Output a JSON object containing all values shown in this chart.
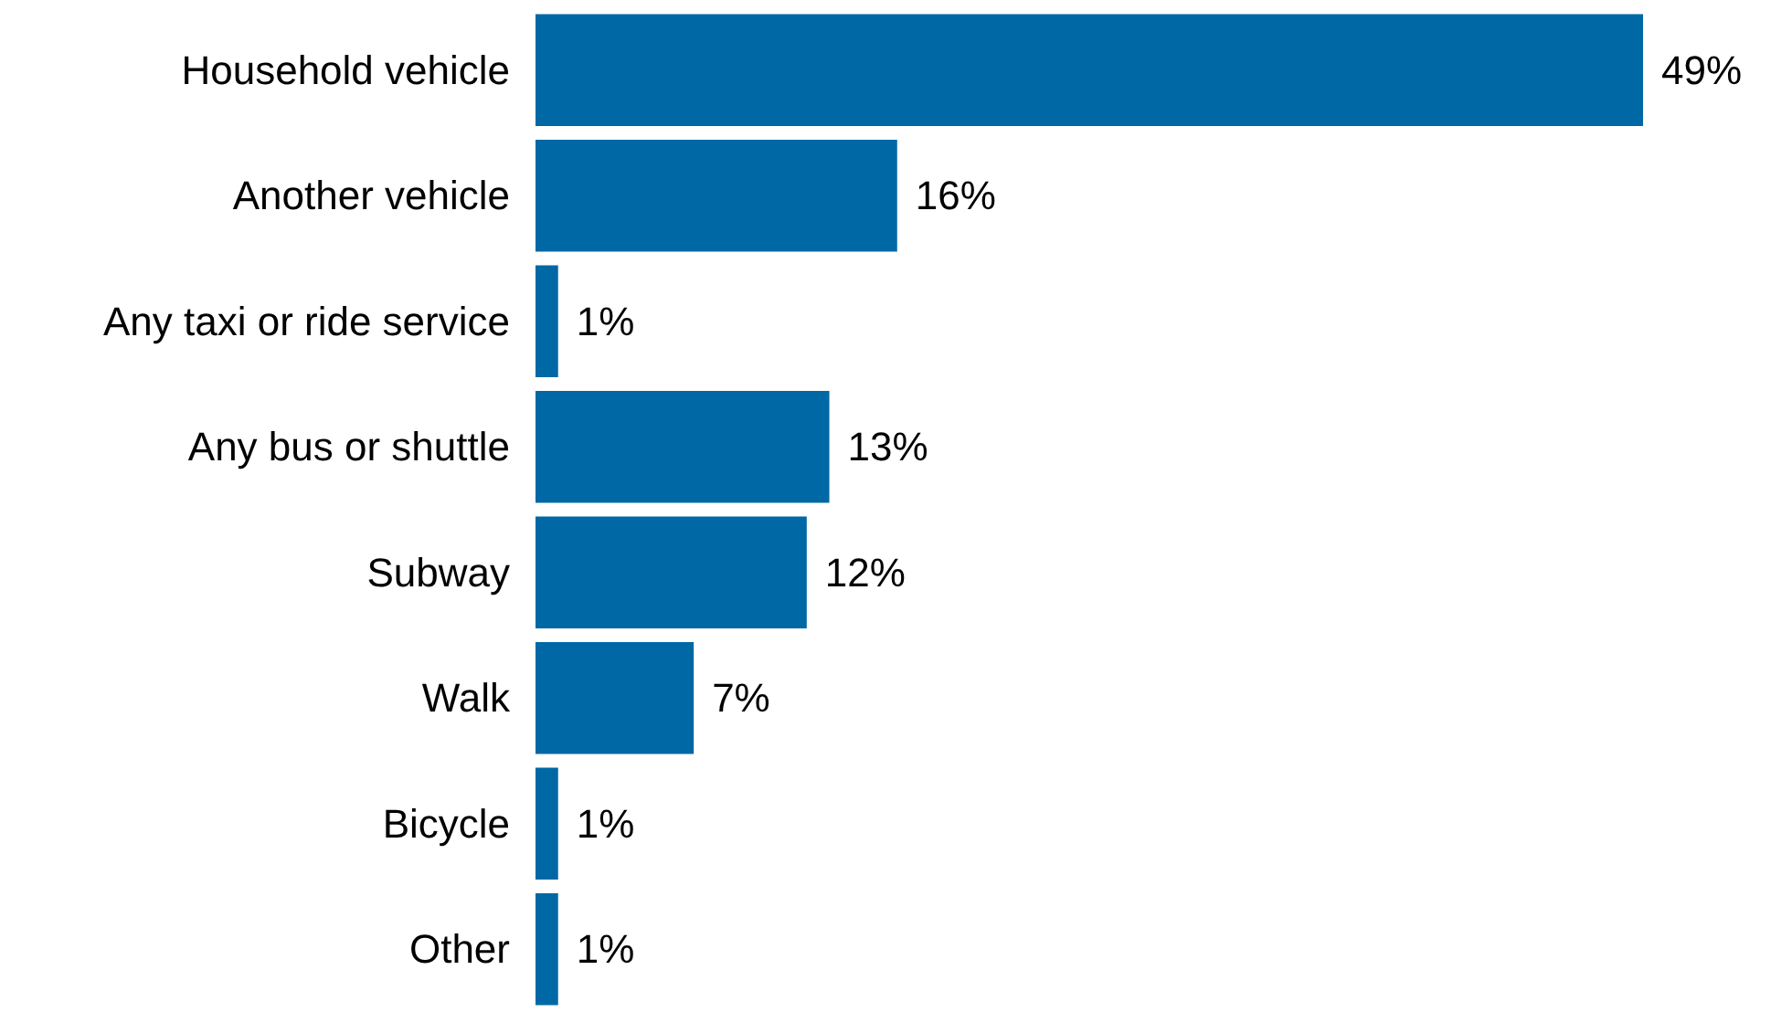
{
  "chart_data": {
    "type": "bar",
    "orientation": "horizontal",
    "categories": [
      "Household vehicle",
      "Another vehicle",
      "Any taxi or ride service",
      "Any bus or shuttle",
      "Subway",
      "Walk",
      "Bicycle",
      "Other"
    ],
    "values": [
      49,
      16,
      1,
      13,
      12,
      7,
      1,
      1
    ],
    "value_labels": [
      "49%",
      "16%",
      "1%",
      "13%",
      "12%",
      "7%",
      "1%",
      "1%"
    ],
    "color": "#0068a5"
  }
}
